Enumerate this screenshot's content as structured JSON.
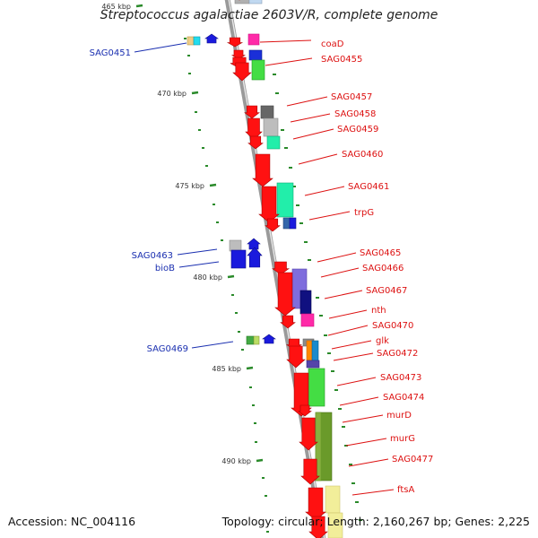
{
  "title": "Streptococcus agalactiae 2603V/R, complete genome",
  "footer": {
    "accession": "Accession: NC_004116",
    "summary": "Topology: circular; Length: 2,160,267 bp; Genes: 2,225"
  },
  "colors": {
    "backbone": "#8a8a8a",
    "tick": "#2a8a2a",
    "forward_strand_label": "#dd1111",
    "reverse_strand_label": "#1a2fb0"
  },
  "scale": {
    "unit": "kbp",
    "tick_labels": [
      "465 kbp",
      "470 kbp",
      "475 kbp",
      "480 kbp",
      "485 kbp",
      "490 kbp"
    ]
  },
  "features": {
    "forward": [
      "coaD",
      "SAG0455",
      "SAG0457",
      "SAG0458",
      "SAG0459",
      "SAG0460",
      "SAG0461",
      "trpG",
      "SAG0465",
      "SAG0466",
      "SAG0467",
      "nth",
      "SAG0470",
      "glk",
      "SAG0472",
      "SAG0473",
      "SAG0474",
      "murD",
      "murG",
      "SAG0477",
      "ftsA"
    ],
    "reverse": [
      "SAG0451",
      "SAG0463",
      "bioB",
      "SAG0469"
    ]
  }
}
